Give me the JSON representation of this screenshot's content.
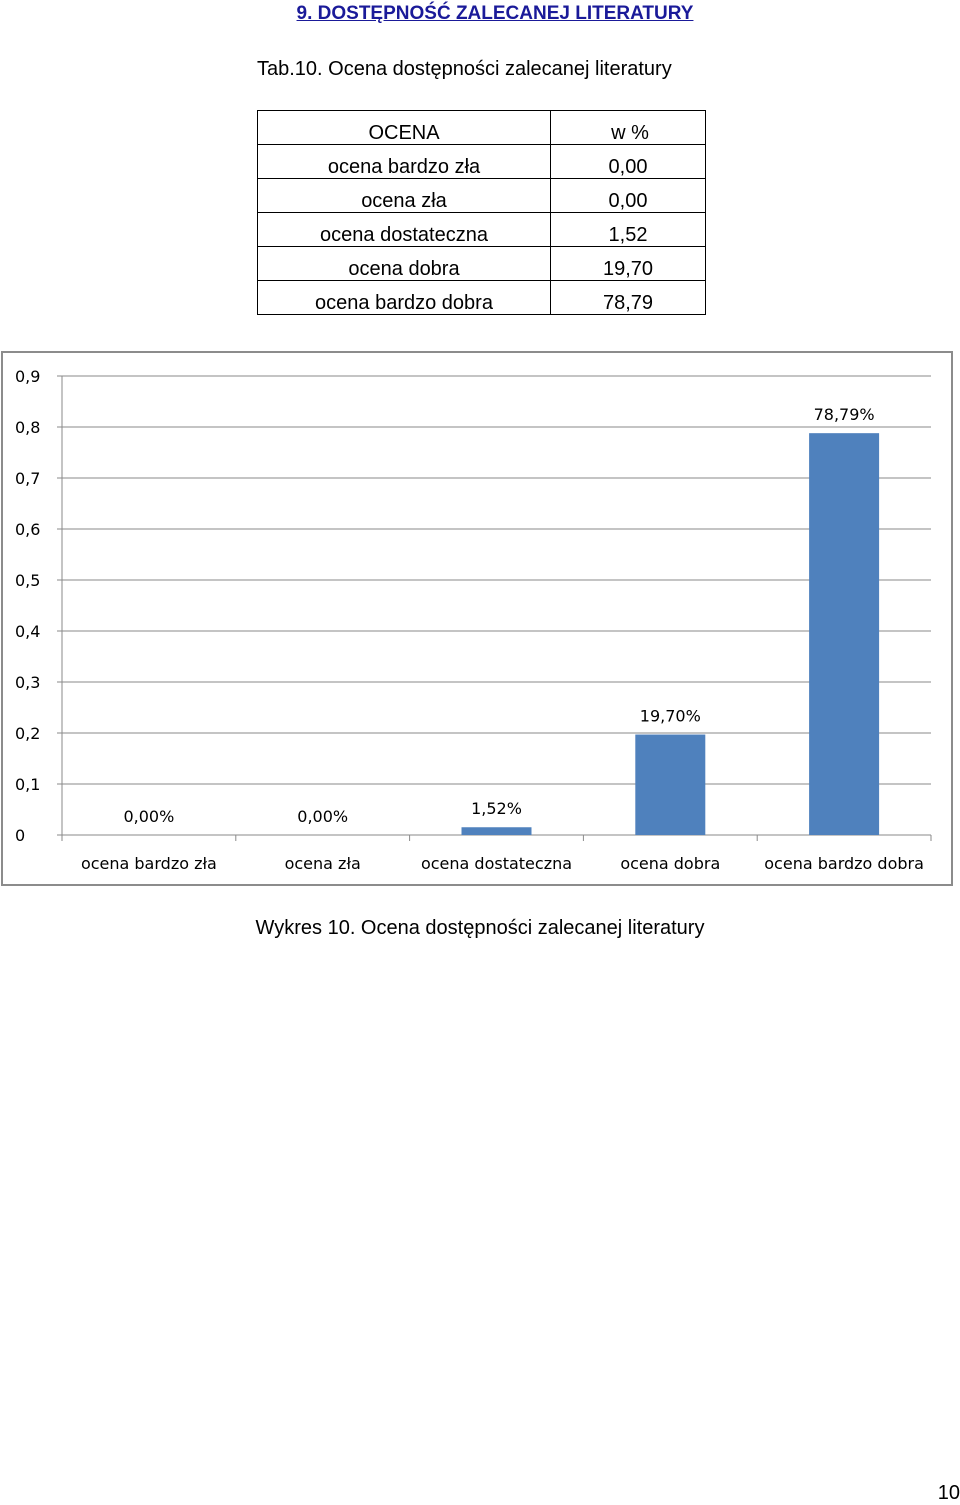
{
  "section_heading": "9. DOSTĘPNOŚĆ ZALECANEJ LITERATURY",
  "table_caption": "Tab.10.  Ocena dostępności zalecanej literatury",
  "table": {
    "headers": [
      "OCENA",
      "w  %"
    ],
    "rows": [
      [
        "ocena bardzo zła",
        "0,00"
      ],
      [
        "ocena zła",
        "0,00"
      ],
      [
        "ocena dostateczna",
        "1,52"
      ],
      [
        "ocena dobra",
        "19,70"
      ],
      [
        "ocena bardzo dobra",
        "78,79"
      ]
    ]
  },
  "chart_data": {
    "type": "bar",
    "categories": [
      "ocena bardzo zła",
      "ocena zła",
      "ocena dostateczna",
      "ocena dobra",
      "ocena bardzo dobra"
    ],
    "values": [
      0.0,
      0.0,
      0.0152,
      0.197,
      0.7879
    ],
    "data_labels": [
      "0,00%",
      "0,00%",
      "1,52%",
      "19,70%",
      "78,79%"
    ],
    "ylim": [
      0,
      0.9
    ],
    "y_ticks": [
      "0",
      "0,1",
      "0,2",
      "0,3",
      "0,4",
      "0,5",
      "0,6",
      "0,7",
      "0,8",
      "0,9"
    ],
    "grid": true,
    "bar_color": "#4f81bd",
    "title": "",
    "xlabel": "",
    "ylabel": ""
  },
  "chart_caption": "Wykres 10. Ocena dostępności zalecanej literatury",
  "page_number": "10"
}
